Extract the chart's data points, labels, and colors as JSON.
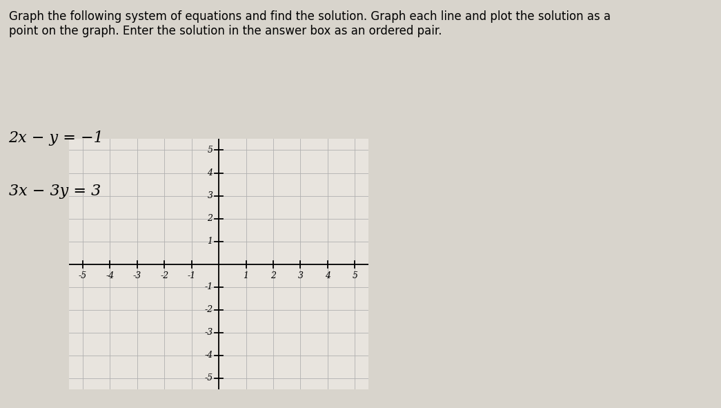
{
  "title_text": "Graph the following system of equations and find the solution. Graph each line and plot the solution as a\npoint on the graph. Enter the solution in the answer box as an ordered pair.",
  "eq1_label": "2x − y = −1",
  "eq2_label": "3x − 3y = 3",
  "xlim": [
    -5.5,
    5.5
  ],
  "ylim": [
    -5.5,
    5.5
  ],
  "grid_color": "#b0b0b0",
  "axis_color": "#000000",
  "graph_bg": "#e8e4de",
  "fig_background": "#d8d4cc",
  "tick_fontsize": 9,
  "title_fontsize": 12,
  "eq_fontsize": 16
}
